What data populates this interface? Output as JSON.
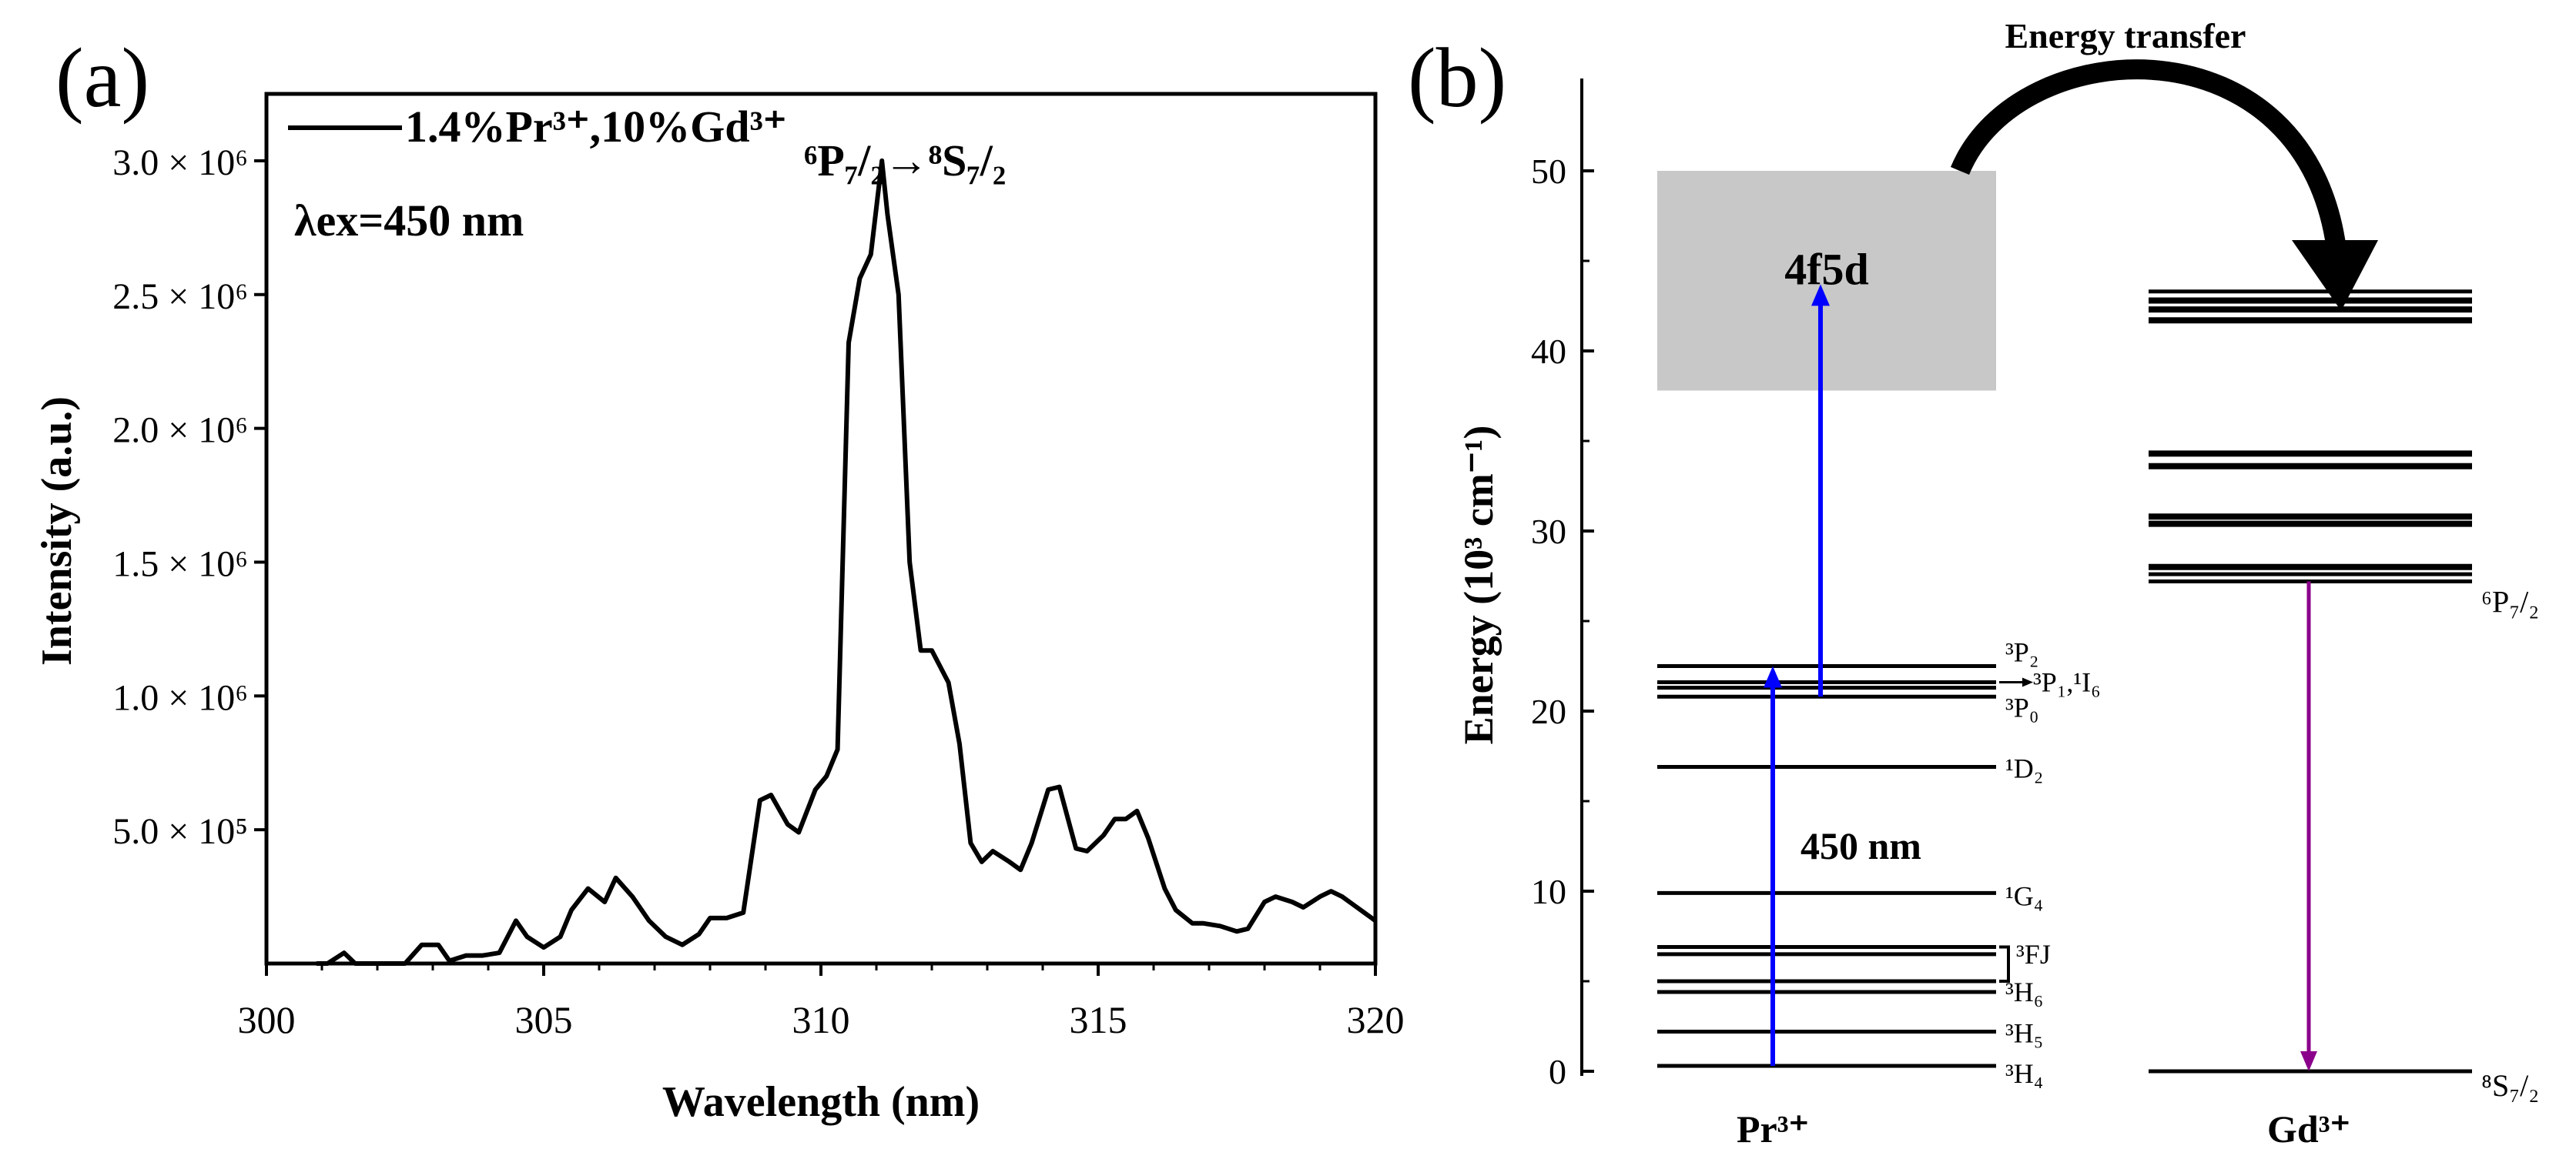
{
  "panel_a": {
    "label": "(a)",
    "legend_label": "1.4%Pr³⁺,10%Gd³⁺",
    "transition_annotation": "⁶P₇/₂→⁸S₇/₂",
    "excitation_label": "λex=450 nm"
  },
  "panel_b": {
    "label": "(b)",
    "ylabel": "Energy (10³ cm⁻¹)",
    "yticks": [
      "0",
      "10",
      "20",
      "30",
      "40",
      "50"
    ],
    "ylim": [
      0,
      55
    ],
    "band_label": "4f5d",
    "band_range": [
      37.8,
      50.0
    ],
    "excitation_label": "450 nm",
    "transfer_label": "Energy transfer",
    "ion_pr_label": "Pr³⁺",
    "ion_gd_label": "Gd³⁺",
    "pr_levels": [
      {
        "energy": 0.3,
        "label": "³H₄"
      },
      {
        "energy": 2.2,
        "label": "³H₅"
      },
      {
        "energy": 4.4,
        "label": "³H₆"
      },
      {
        "energy": 5.0,
        "label": ""
      },
      {
        "energy": 6.5,
        "label": "³FJ"
      },
      {
        "energy": 6.9,
        "label": ""
      },
      {
        "energy": 9.9,
        "label": "¹G₄"
      },
      {
        "energy": 16.9,
        "label": "¹D₂"
      },
      {
        "energy": 20.8,
        "label": "³P₀"
      },
      {
        "energy": 21.3,
        "label": ""
      },
      {
        "energy": 21.6,
        "label": "³P₁,¹I₆"
      },
      {
        "energy": 22.5,
        "label": "³P₂"
      }
    ],
    "gd_levels": [
      {
        "energy": 0.0,
        "label": "⁸S₇/₂"
      },
      {
        "energy": 27.2,
        "label": "⁶P₇/₂"
      },
      {
        "energy": 27.6,
        "label": ""
      },
      {
        "energy": 28.0,
        "label": ""
      },
      {
        "energy": 30.4,
        "label": ""
      },
      {
        "energy": 30.8,
        "label": ""
      },
      {
        "energy": 33.6,
        "label": ""
      },
      {
        "energy": 34.3,
        "label": ""
      },
      {
        "energy": 41.7,
        "label": ""
      },
      {
        "energy": 42.3,
        "label": ""
      },
      {
        "energy": 42.8,
        "label": ""
      },
      {
        "energy": 43.3,
        "label": ""
      }
    ],
    "colors": {
      "excitation": "#0000ff",
      "emission": "#8b008b",
      "band": "#c8c8c8"
    }
  },
  "chart_data": {
    "type": "line",
    "title": "",
    "xlabel": "Wavelength (nm)",
    "ylabel": "Intensity (a.u.)",
    "xlim": [
      300,
      320
    ],
    "ylim": [
      0,
      3250000
    ],
    "xticks": [
      "300",
      "305",
      "310",
      "315",
      "320"
    ],
    "yticks": [
      {
        "value": 500000,
        "label": "5.0 × 10⁵"
      },
      {
        "value": 1000000,
        "label": "1.0 × 10⁶"
      },
      {
        "value": 1500000,
        "label": "1.5 × 10⁶"
      },
      {
        "value": 2000000,
        "label": "2.0 × 10⁶"
      },
      {
        "value": 2500000,
        "label": "2.5 × 10⁶"
      },
      {
        "value": 3000000,
        "label": "3.0 × 10⁶"
      }
    ],
    "series": [
      {
        "name": "1.4%Pr³⁺,10%Gd³⁺",
        "x": [
          300.9,
          301.1,
          301.4,
          301.6,
          301.9,
          302.2,
          302.5,
          302.8,
          303.1,
          303.3,
          303.6,
          303.9,
          304.2,
          304.5,
          304.7,
          305.0,
          305.3,
          305.5,
          305.8,
          306.1,
          306.3,
          306.6,
          306.9,
          307.2,
          307.5,
          307.8,
          308.0,
          308.3,
          308.6,
          308.9,
          309.1,
          309.4,
          309.6,
          309.9,
          310.1,
          310.3,
          310.5,
          310.7,
          310.9,
          311.1,
          311.2,
          311.4,
          311.6,
          311.8,
          312.0,
          312.3,
          312.5,
          312.7,
          312.9,
          313.1,
          313.4,
          313.6,
          313.8,
          314.1,
          314.3,
          314.6,
          314.8,
          315.1,
          315.3,
          315.5,
          315.7,
          315.9,
          316.2,
          316.4,
          316.7,
          316.9,
          317.2,
          317.5,
          317.7,
          318.0,
          318.2,
          318.5,
          318.7,
          319.0,
          319.2,
          319.4,
          319.6,
          319.8,
          320.0
        ],
        "values": [
          0,
          0,
          40000,
          0,
          0,
          0,
          0,
          70000,
          70000,
          10000,
          30000,
          30000,
          40000,
          160000,
          100000,
          60000,
          100000,
          200000,
          280000,
          230000,
          320000,
          250000,
          160000,
          100000,
          70000,
          110000,
          170000,
          170000,
          190000,
          610000,
          630000,
          520000,
          490000,
          650000,
          700000,
          800000,
          2320000,
          2560000,
          2650000,
          3000000,
          2800000,
          2500000,
          1500000,
          1170000,
          1170000,
          1050000,
          820000,
          450000,
          380000,
          420000,
          380000,
          350000,
          450000,
          650000,
          660000,
          430000,
          420000,
          480000,
          540000,
          540000,
          570000,
          470000,
          280000,
          200000,
          150000,
          150000,
          140000,
          120000,
          130000,
          230000,
          250000,
          230000,
          210000,
          250000,
          270000,
          250000,
          220000,
          190000,
          160000
        ]
      }
    ]
  }
}
